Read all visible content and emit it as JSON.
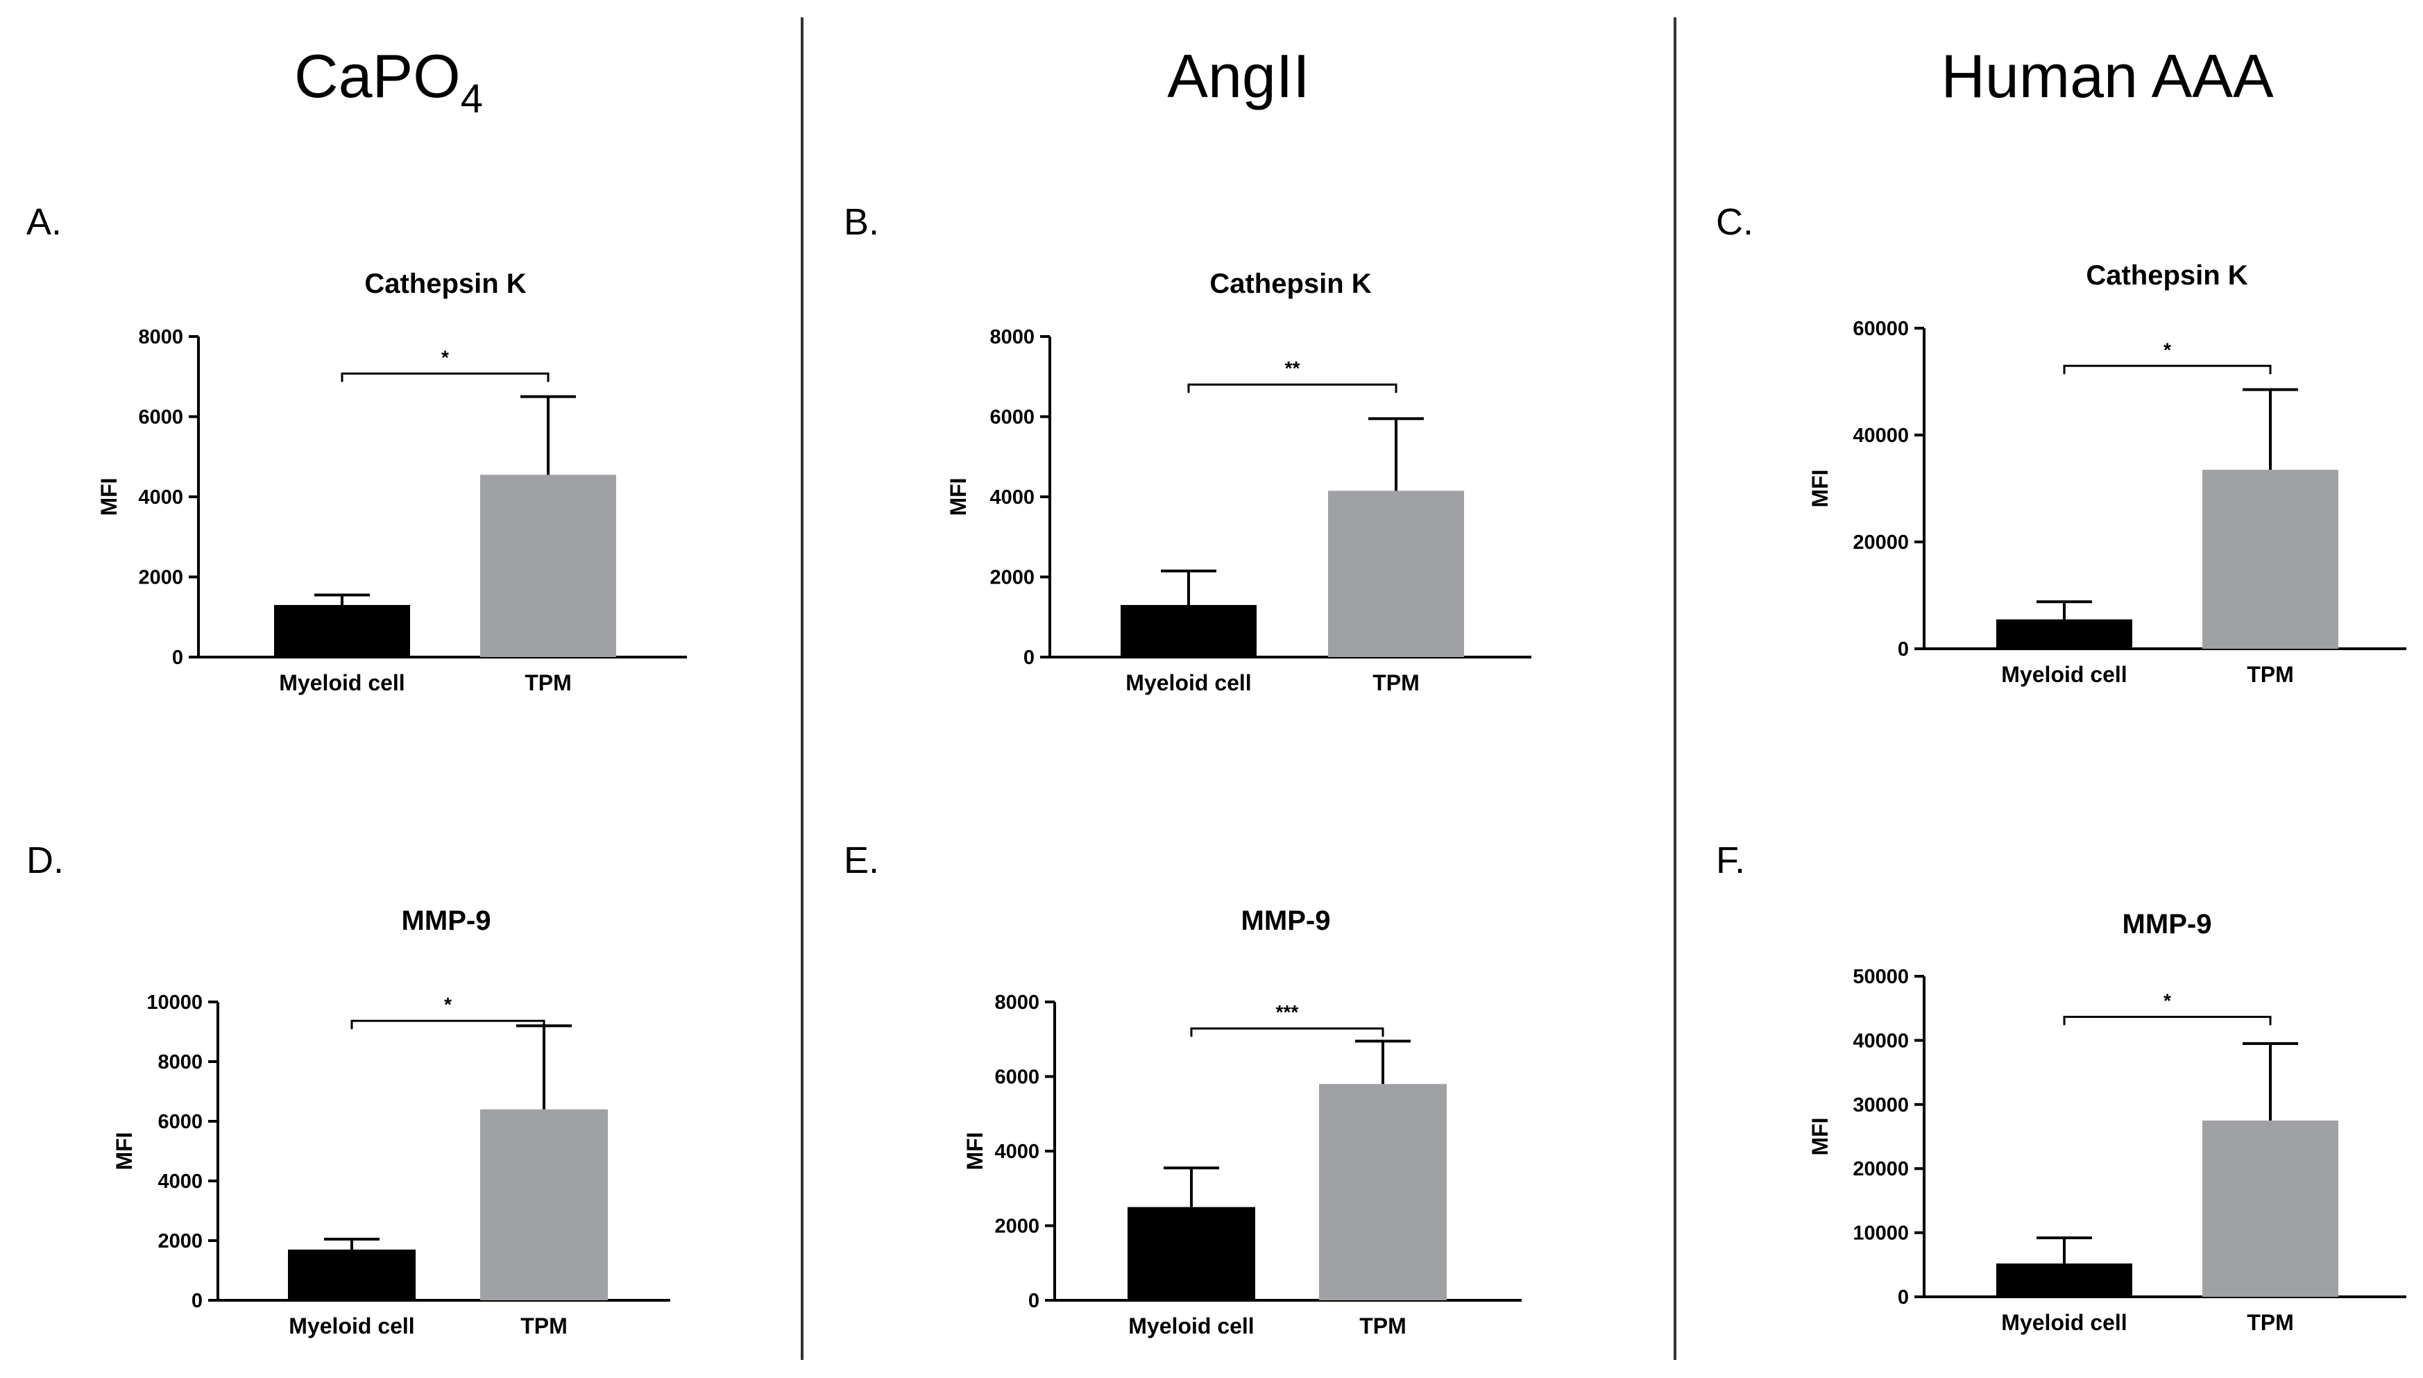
{
  "column_titles": [
    {
      "text": "CaPO",
      "sub": "4"
    },
    {
      "text": "AngII",
      "sub": ""
    },
    {
      "text": "Human AAA",
      "sub": ""
    }
  ],
  "colors": {
    "myeloid": "#000000",
    "tpm": "#a0a1a5",
    "axis": "#000000",
    "divider": "#333333"
  },
  "chart_data": [
    {
      "panel": "A.",
      "type": "bar",
      "title": "Cathepsin K",
      "xlabel": "",
      "ylabel": "MFI",
      "categories": [
        "Myeloid cell",
        "TPM"
      ],
      "values": [
        1300,
        4550
      ],
      "errors": [
        250,
        1950
      ],
      "ylim": [
        0,
        8000
      ],
      "yticks": [
        0,
        2000,
        4000,
        6000,
        8000
      ],
      "significance": "*"
    },
    {
      "panel": "B.",
      "type": "bar",
      "title": "Cathepsin K",
      "xlabel": "",
      "ylabel": "MFI",
      "categories": [
        "Myeloid cell",
        "TPM"
      ],
      "values": [
        1300,
        4150
      ],
      "errors": [
        850,
        1800
      ],
      "ylim": [
        0,
        8000
      ],
      "yticks": [
        0,
        2000,
        4000,
        6000,
        8000
      ],
      "significance": "**"
    },
    {
      "panel": "C.",
      "type": "bar",
      "title": "Cathepsin K",
      "xlabel": "",
      "ylabel": "MFI",
      "categories": [
        "Myeloid cell",
        "TPM"
      ],
      "values": [
        5500,
        33500
      ],
      "errors": [
        3300,
        15000
      ],
      "ylim": [
        0,
        60000
      ],
      "yticks": [
        0,
        20000,
        40000,
        60000
      ],
      "significance": "*"
    },
    {
      "panel": "D.",
      "type": "bar",
      "title": "MMP-9",
      "xlabel": "",
      "ylabel": "MFI",
      "categories": [
        "Myeloid cell",
        "TPM"
      ],
      "values": [
        1700,
        6400
      ],
      "errors": [
        350,
        2800
      ],
      "ylim": [
        0,
        10000
      ],
      "yticks": [
        0,
        2000,
        4000,
        6000,
        8000,
        10000
      ],
      "significance": "*"
    },
    {
      "panel": "E.",
      "type": "bar",
      "title": "MMP-9",
      "xlabel": "",
      "ylabel": "MFI",
      "categories": [
        "Myeloid cell",
        "TPM"
      ],
      "values": [
        2500,
        5800
      ],
      "errors": [
        1050,
        1150
      ],
      "ylim": [
        0,
        8000
      ],
      "yticks": [
        0,
        2000,
        4000,
        6000,
        8000
      ],
      "significance": "***"
    },
    {
      "panel": "F.",
      "type": "bar",
      "title": "MMP-9",
      "xlabel": "",
      "ylabel": "MFI",
      "categories": [
        "Myeloid cell",
        "TPM"
      ],
      "values": [
        5200,
        27500
      ],
      "errors": [
        4000,
        12000
      ],
      "ylim": [
        0,
        50000
      ],
      "yticks": [
        0,
        10000,
        20000,
        30000,
        40000,
        50000
      ],
      "significance": "*"
    }
  ]
}
